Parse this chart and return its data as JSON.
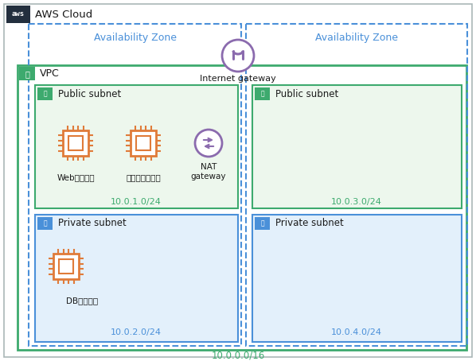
{
  "title": "AWS Cloud",
  "vpc_label": "VPC",
  "vpc_cidr": "10.0.0.0/16",
  "az1_label": "Availability Zone",
  "az2_label": "Availability Zone",
  "public_subnet1_label": "Public subnet",
  "public_subnet1_cidr": "10.0.1.0/24",
  "public_subnet2_label": "Public subnet",
  "public_subnet2_cidr": "10.0.3.0/24",
  "private_subnet1_label": "Private subnet",
  "private_subnet1_cidr": "10.0.2.0/24",
  "private_subnet2_label": "Private subnet",
  "private_subnet2_cidr": "10.0.4.0/24",
  "web_server_label": "Webサーバー",
  "bastion_label": "踏み台サーバー",
  "nat_label": "NAT\ngateway",
  "db_label": "DBサーバー",
  "internet_gateway_label": "Internet gateway",
  "aws_orange": "#E07B39",
  "aws_purple": "#8B6BAE",
  "az_blue": "#4A90D9",
  "vpc_green": "#3DAA6E",
  "public_subnet_green_bg": "#EDF7ED",
  "public_subnet_green_border": "#3DAA6E",
  "private_subnet_blue_bg": "#E3F0FB",
  "private_subnet_blue_border": "#4A90D9",
  "text_green": "#3DAA6E",
  "text_blue": "#4A90D9",
  "text_dark": "#1A1A1A",
  "bg_white": "#FFFFFF",
  "aws_bg_dark": "#232F3E"
}
